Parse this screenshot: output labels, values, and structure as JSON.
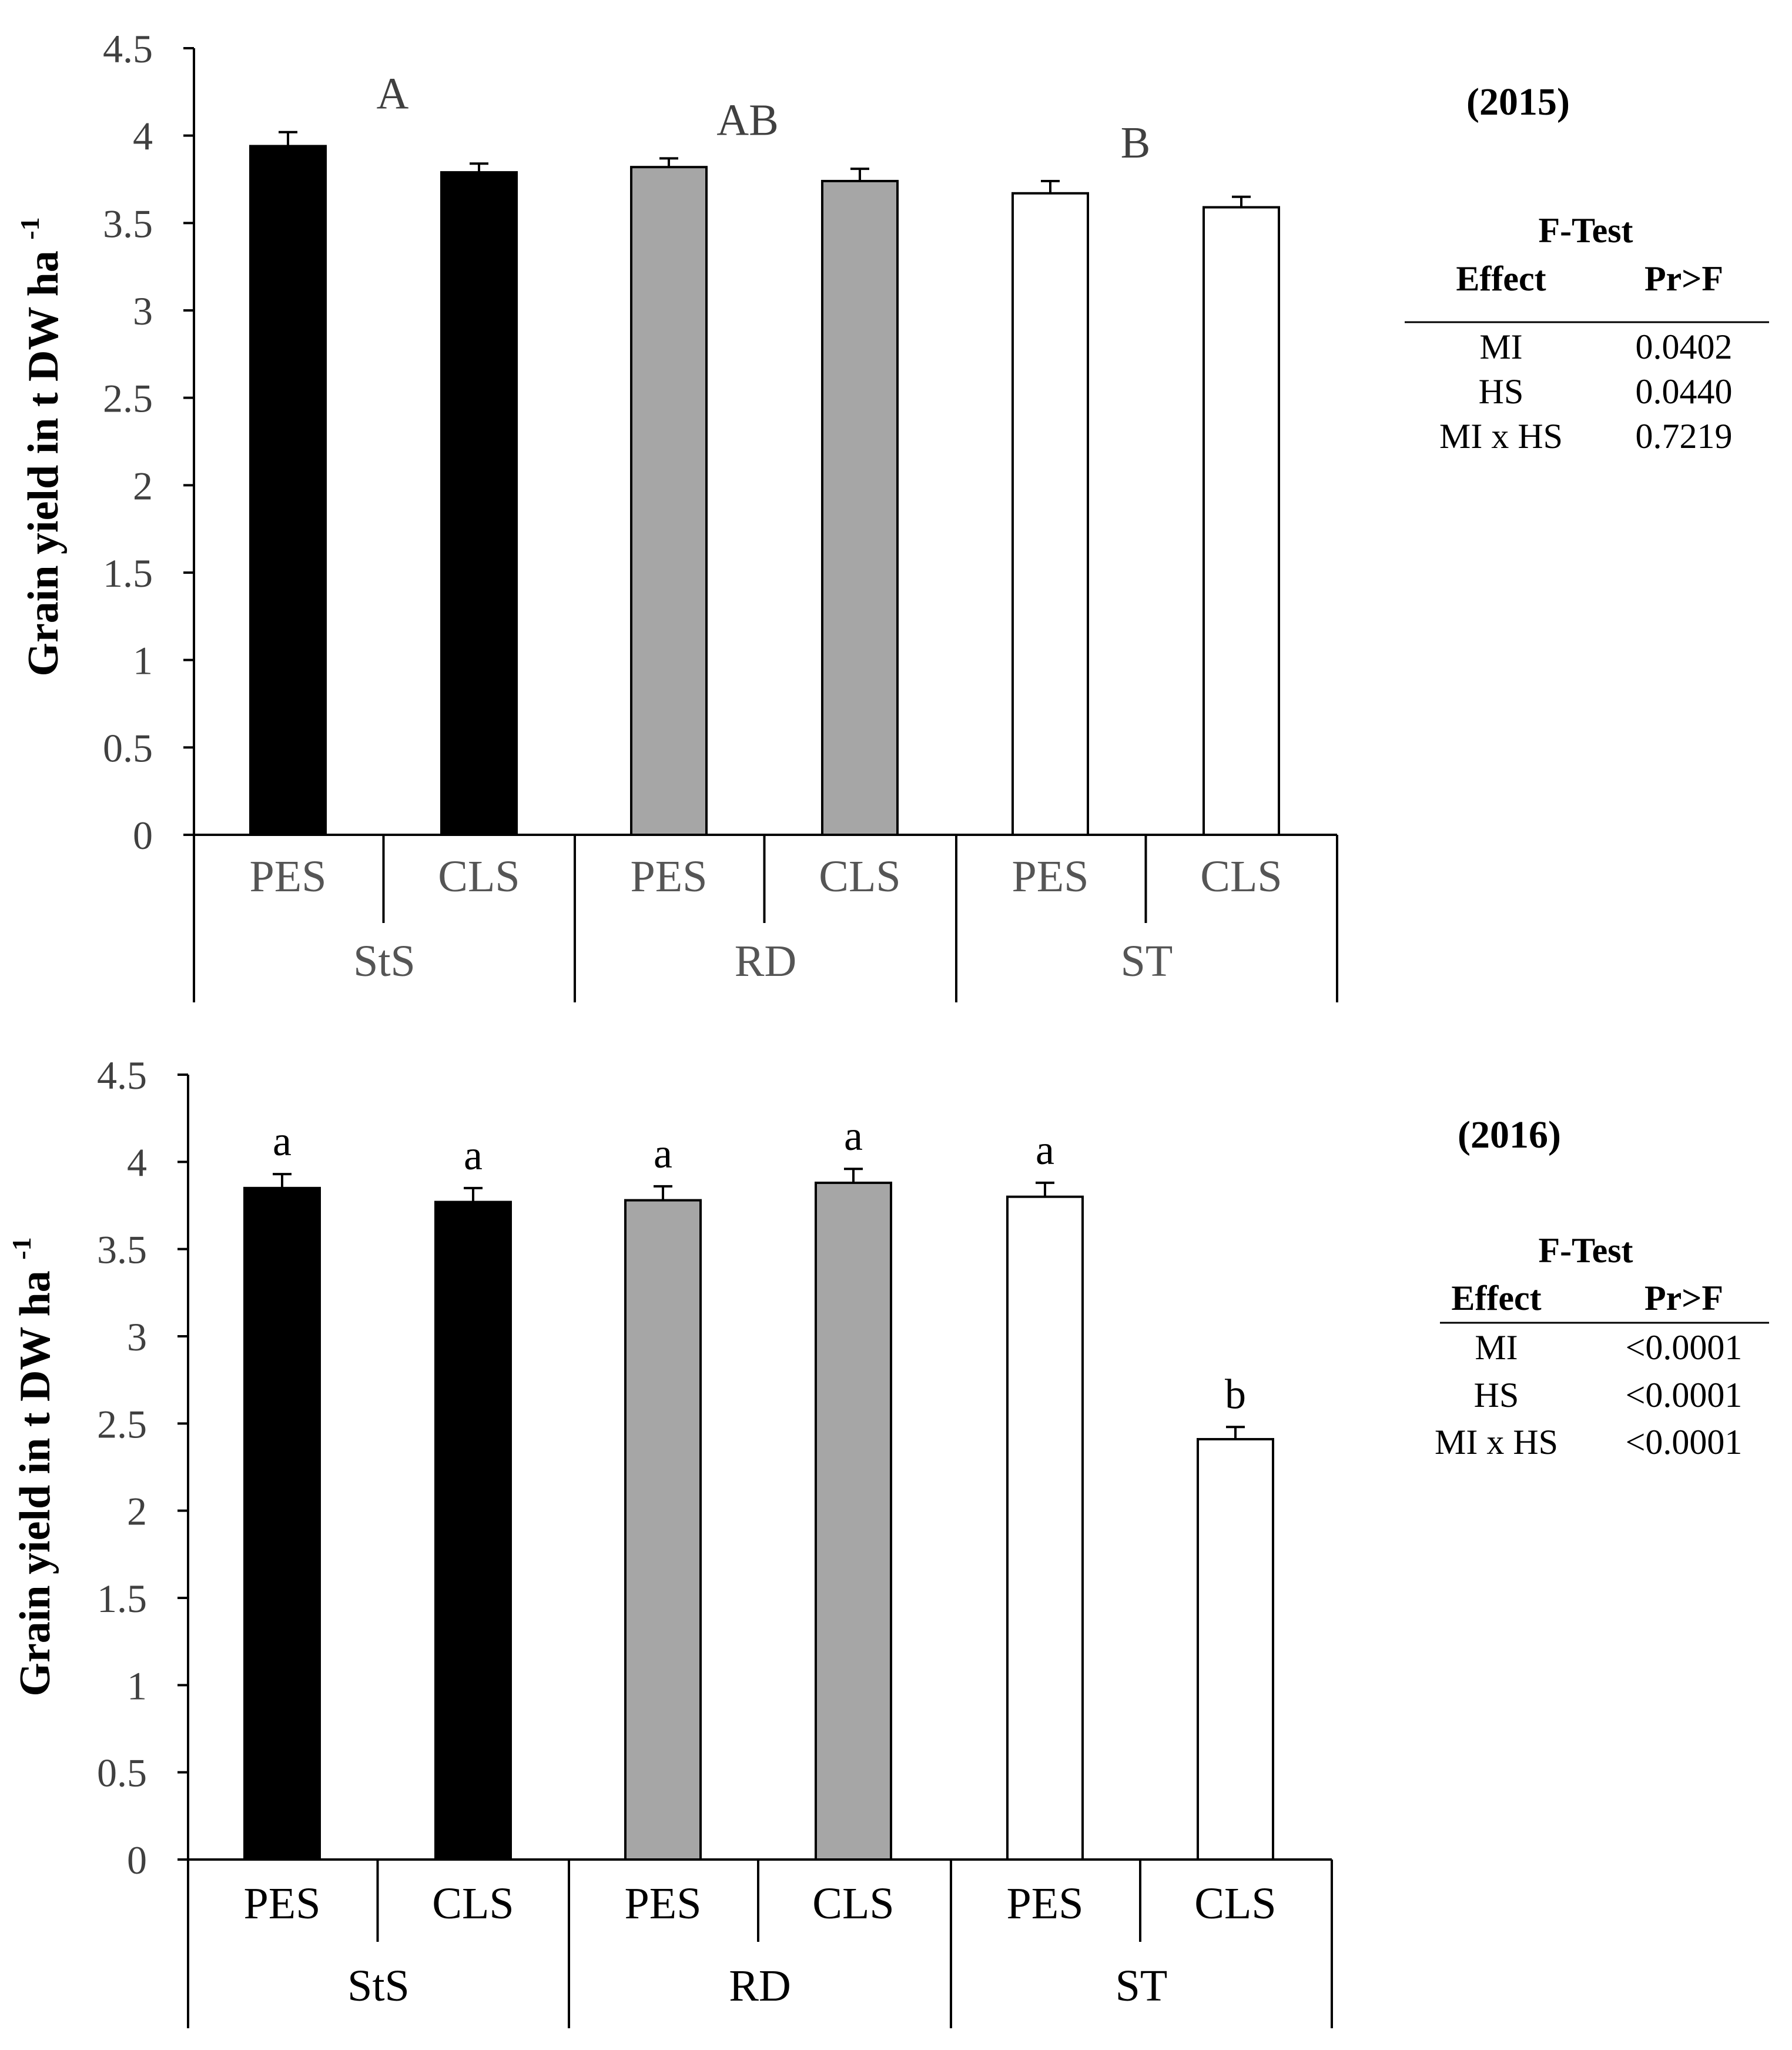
{
  "chart_data": [
    {
      "type": "bar",
      "year_label": "(2015)",
      "ylabel": "Grain yield in t DW ha",
      "ylabel_superscript": "-1",
      "ylim": [
        0,
        4.5
      ],
      "yticks": [
        "0",
        "0.5",
        "1",
        "1.5",
        "2",
        "2.5",
        "3",
        "3.5",
        "4",
        "4.5"
      ],
      "groups": [
        "StS",
        "RD",
        "ST"
      ],
      "categories": [
        "PES",
        "CLS",
        "PES",
        "CLS",
        "PES",
        "CLS"
      ],
      "values": [
        3.94,
        3.79,
        3.82,
        3.74,
        3.67,
        3.59
      ],
      "errors": [
        0.08,
        0.05,
        0.05,
        0.07,
        0.07,
        0.06
      ],
      "colors": [
        "#000000",
        "#000000",
        "#a6a6a6",
        "#a6a6a6",
        "#ffffff",
        "#ffffff"
      ],
      "group_letters": [
        "A",
        "AB",
        "B"
      ],
      "ftest": {
        "title": "F-Test",
        "headers": [
          "Effect",
          "Pr>F"
        ],
        "rows": [
          [
            "MI",
            "0.0402"
          ],
          [
            "HS",
            "0.0440"
          ],
          [
            "MI x HS",
            "0.7219"
          ]
        ]
      }
    },
    {
      "type": "bar",
      "year_label": "(2016)",
      "ylabel": "Grain yield in t DW ha",
      "ylabel_superscript": "-1",
      "ylim": [
        0,
        4.5
      ],
      "yticks": [
        "0",
        "0.5",
        "1",
        "1.5",
        "2",
        "2.5",
        "3",
        "3.5",
        "4",
        "4.5"
      ],
      "groups": [
        "StS",
        "RD",
        "ST"
      ],
      "categories": [
        "PES",
        "CLS",
        "PES",
        "CLS",
        "PES",
        "CLS"
      ],
      "values": [
        3.85,
        3.77,
        3.78,
        3.88,
        3.8,
        2.41
      ],
      "errors": [
        0.08,
        0.08,
        0.08,
        0.08,
        0.08,
        0.07
      ],
      "colors": [
        "#000000",
        "#000000",
        "#a6a6a6",
        "#a6a6a6",
        "#ffffff",
        "#ffffff"
      ],
      "bar_letters": [
        "a",
        "a",
        "a",
        "a",
        "a",
        "b"
      ],
      "ftest": {
        "title": "F-Test",
        "headers": [
          "Effect",
          "Pr>F"
        ],
        "rows": [
          [
            "MI",
            "<0.0001"
          ],
          [
            "HS",
            "<0.0001"
          ],
          [
            "MI x HS",
            "<0.0001"
          ]
        ]
      }
    }
  ]
}
